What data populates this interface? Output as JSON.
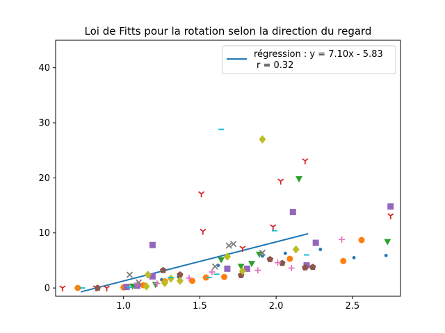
{
  "chart_data": {
    "type": "scatter",
    "title": "Loi de Fitts pour la rotation selon la direction du regard",
    "xlabel": "",
    "ylabel": "",
    "xlim": [
      0.555,
      2.815
    ],
    "ylim": [
      -1.5,
      45
    ],
    "xticks": [
      1.0,
      1.5,
      2.0,
      2.5
    ],
    "xtick_labels": [
      "1.0",
      "1.5",
      "2.0",
      "2.5"
    ],
    "yticks": [
      0,
      10,
      20,
      30,
      40
    ],
    "ytick_labels": [
      "0",
      "10",
      "20",
      "30",
      "40"
    ],
    "grid": false,
    "legend_position": "top-right",
    "regression": {
      "label_line1": "régression : y = 7.10x - 5.83",
      "label_line2": "r = 0.32",
      "slope": 7.1,
      "intercept": -5.83,
      "x_range": [
        0.72,
        2.21
      ],
      "color": "#1f77b4"
    },
    "series": [
      {
        "marker": "point",
        "color": "#1f77b4",
        "points": [
          [
            1.62,
            4.1
          ],
          [
            1.91,
            5.8
          ],
          [
            2.06,
            6.3
          ],
          [
            2.29,
            7.0
          ],
          [
            2.51,
            5.5
          ],
          [
            2.72,
            5.9
          ],
          [
            1.36,
            2.0
          ],
          [
            1.25,
            1.5
          ]
        ]
      },
      {
        "marker": "circle",
        "color": "#ff7f0e",
        "points": [
          [
            0.7,
            0.0
          ],
          [
            1.0,
            0.1
          ],
          [
            1.13,
            0.5
          ],
          [
            1.27,
            1.2
          ],
          [
            1.45,
            1.3
          ],
          [
            1.54,
            1.9
          ],
          [
            1.66,
            2.0
          ],
          [
            2.09,
            5.3
          ],
          [
            2.44,
            4.9
          ],
          [
            2.56,
            8.7
          ]
        ]
      },
      {
        "marker": "tri_down",
        "color": "#2ca02c",
        "points": [
          [
            1.06,
            0.3
          ],
          [
            1.21,
            0.6
          ],
          [
            1.64,
            5.1
          ],
          [
            1.77,
            3.9
          ],
          [
            1.84,
            4.4
          ],
          [
            1.89,
            6.1
          ],
          [
            2.15,
            19.8
          ],
          [
            2.73,
            8.4
          ]
        ]
      },
      {
        "marker": "tri_down_thin",
        "color": "#d62728",
        "points": [
          [
            0.6,
            0.0
          ],
          [
            0.82,
            0.0
          ],
          [
            0.89,
            0.0
          ],
          [
            1.51,
            17.1
          ],
          [
            1.52,
            10.3
          ],
          [
            1.78,
            7.2
          ],
          [
            1.98,
            11.1
          ],
          [
            2.03,
            19.4
          ],
          [
            2.19,
            23.1
          ],
          [
            2.75,
            13.1
          ]
        ]
      },
      {
        "marker": "square",
        "color": "#9467bd",
        "points": [
          [
            1.02,
            0.2
          ],
          [
            1.09,
            0.4
          ],
          [
            1.19,
            7.8
          ],
          [
            1.19,
            2.1
          ],
          [
            1.68,
            3.5
          ],
          [
            1.81,
            3.5
          ],
          [
            2.11,
            13.8
          ],
          [
            2.2,
            4.1
          ],
          [
            2.26,
            8.2
          ],
          [
            2.75,
            14.8
          ]
        ]
      },
      {
        "marker": "pentagon",
        "color": "#8c564b",
        "points": [
          [
            0.83,
            0.0
          ],
          [
            1.26,
            3.2
          ],
          [
            1.37,
            2.4
          ],
          [
            1.77,
            2.3
          ],
          [
            1.96,
            5.2
          ],
          [
            2.04,
            4.5
          ],
          [
            2.19,
            3.7
          ],
          [
            2.24,
            3.8
          ]
        ]
      },
      {
        "marker": "plus",
        "color": "#e377c2",
        "points": [
          [
            1.09,
            0.8
          ],
          [
            1.22,
            0.8
          ],
          [
            1.43,
            1.8
          ],
          [
            1.58,
            2.9
          ],
          [
            1.88,
            3.2
          ],
          [
            2.01,
            4.6
          ],
          [
            2.1,
            3.6
          ],
          [
            2.43,
            8.8
          ]
        ]
      },
      {
        "marker": "x",
        "color": "#7f7f7f",
        "points": [
          [
            1.04,
            2.4
          ],
          [
            1.1,
            1.0
          ],
          [
            1.6,
            3.9
          ],
          [
            1.69,
            7.7
          ],
          [
            1.72,
            8.0
          ],
          [
            1.91,
            6.4
          ]
        ]
      },
      {
        "marker": "diamond",
        "color": "#bcbd22",
        "points": [
          [
            1.15,
            0.3
          ],
          [
            1.16,
            2.4
          ],
          [
            1.27,
            0.9
          ],
          [
            1.31,
            1.7
          ],
          [
            1.37,
            1.3
          ],
          [
            1.68,
            5.7
          ],
          [
            1.78,
            3.1
          ],
          [
            1.91,
            27.0
          ],
          [
            2.13,
            7.0
          ]
        ]
      },
      {
        "marker": "hline",
        "color": "#17becf",
        "points": [
          [
            0.73,
            0.0
          ],
          [
            1.04,
            0.1
          ],
          [
            1.31,
            1.9
          ],
          [
            1.56,
            1.9
          ],
          [
            1.61,
            2.5
          ],
          [
            1.64,
            28.8
          ],
          [
            1.99,
            10.4
          ],
          [
            2.2,
            6.0
          ]
        ]
      }
    ]
  }
}
